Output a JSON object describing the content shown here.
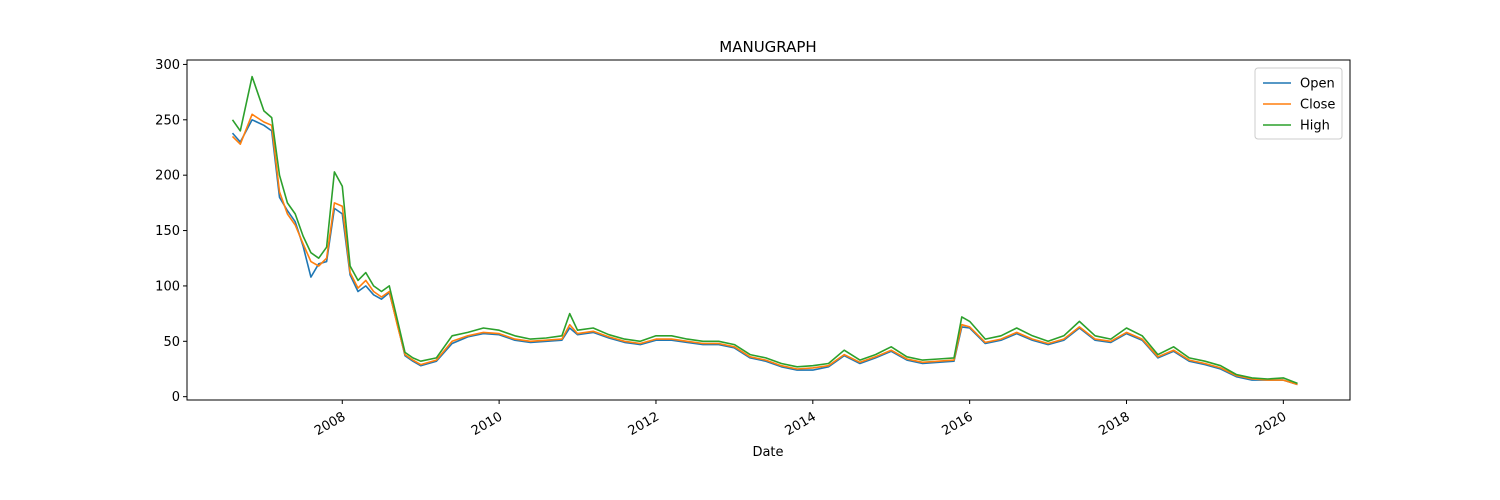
{
  "chart_data": {
    "type": "line",
    "title": "MANUGRAPH",
    "x_label": "Date",
    "x": [
      2006.6,
      2006.7,
      2006.85,
      2007.0,
      2007.1,
      2007.2,
      2007.3,
      2007.4,
      2007.5,
      2007.6,
      2007.7,
      2007.8,
      2007.9,
      2008.0,
      2008.1,
      2008.2,
      2008.3,
      2008.4,
      2008.5,
      2008.6,
      2008.7,
      2008.8,
      2008.9,
      2009.0,
      2009.2,
      2009.4,
      2009.6,
      2009.8,
      2010.0,
      2010.2,
      2010.4,
      2010.6,
      2010.8,
      2010.9,
      2011.0,
      2011.2,
      2011.4,
      2011.6,
      2011.8,
      2012.0,
      2012.2,
      2012.4,
      2012.6,
      2012.8,
      2013.0,
      2013.2,
      2013.4,
      2013.6,
      2013.8,
      2014.0,
      2014.2,
      2014.4,
      2014.6,
      2014.8,
      2015.0,
      2015.2,
      2015.4,
      2015.6,
      2015.8,
      2015.9,
      2016.0,
      2016.2,
      2016.4,
      2016.6,
      2016.8,
      2017.0,
      2017.2,
      2017.4,
      2017.6,
      2017.8,
      2018.0,
      2018.2,
      2018.4,
      2018.6,
      2018.8,
      2019.0,
      2019.2,
      2019.4,
      2019.6,
      2019.8,
      2020.0,
      2020.18
    ],
    "series": [
      {
        "name": "Open",
        "color": "#1f77b4",
        "values": [
          238,
          230,
          250,
          245,
          240,
          180,
          168,
          158,
          136,
          108,
          120,
          122,
          170,
          165,
          110,
          95,
          100,
          92,
          88,
          94,
          66,
          37,
          32,
          28,
          32,
          48,
          54,
          57,
          56,
          51,
          49,
          50,
          51,
          62,
          56,
          58,
          53,
          49,
          47,
          51,
          51,
          49,
          47,
          47,
          44,
          35,
          32,
          27,
          24,
          24,
          27,
          37,
          30,
          35,
          41,
          33,
          30,
          31,
          32,
          63,
          62,
          48,
          51,
          57,
          51,
          47,
          51,
          62,
          51,
          49,
          57,
          51,
          35,
          41,
          32,
          29,
          25,
          18,
          15,
          15,
          15,
          11
        ]
      },
      {
        "name": "Close",
        "color": "#ff7f0e",
        "values": [
          235,
          228,
          255,
          248,
          245,
          185,
          165,
          155,
          138,
          122,
          118,
          125,
          175,
          172,
          112,
          98,
          105,
          95,
          90,
          95,
          65,
          38,
          33,
          29,
          33,
          50,
          55,
          58,
          57,
          52,
          50,
          51,
          52,
          65,
          57,
          59,
          54,
          50,
          48,
          52,
          52,
          50,
          48,
          48,
          45,
          36,
          33,
          28,
          25,
          26,
          28,
          38,
          31,
          36,
          42,
          34,
          31,
          32,
          33,
          65,
          63,
          49,
          52,
          58,
          52,
          48,
          52,
          63,
          52,
          50,
          58,
          52,
          36,
          42,
          33,
          30,
          26,
          19,
          16,
          15,
          15,
          11
        ]
      },
      {
        "name": "High",
        "color": "#2ca02c",
        "values": [
          250,
          240,
          289,
          258,
          252,
          200,
          175,
          165,
          145,
          130,
          125,
          135,
          203,
          190,
          118,
          105,
          112,
          100,
          95,
          100,
          70,
          40,
          35,
          32,
          35,
          55,
          58,
          62,
          60,
          55,
          52,
          53,
          55,
          75,
          60,
          62,
          56,
          52,
          50,
          55,
          55,
          52,
          50,
          50,
          47,
          38,
          35,
          30,
          27,
          28,
          30,
          42,
          33,
          38,
          45,
          36,
          33,
          34,
          35,
          72,
          68,
          52,
          55,
          62,
          55,
          50,
          55,
          68,
          55,
          52,
          62,
          55,
          38,
          45,
          35,
          32,
          28,
          20,
          17,
          16,
          17,
          12
        ]
      }
    ],
    "xlim": [
      2006.02,
      2020.85
    ],
    "xticks": [
      2008,
      2010,
      2012,
      2014,
      2016,
      2018,
      2020
    ],
    "ylim": [
      -3,
      304
    ],
    "yticks": [
      0,
      50,
      100,
      150,
      200,
      250,
      300
    ],
    "legend": "upper right",
    "grid": false
  }
}
